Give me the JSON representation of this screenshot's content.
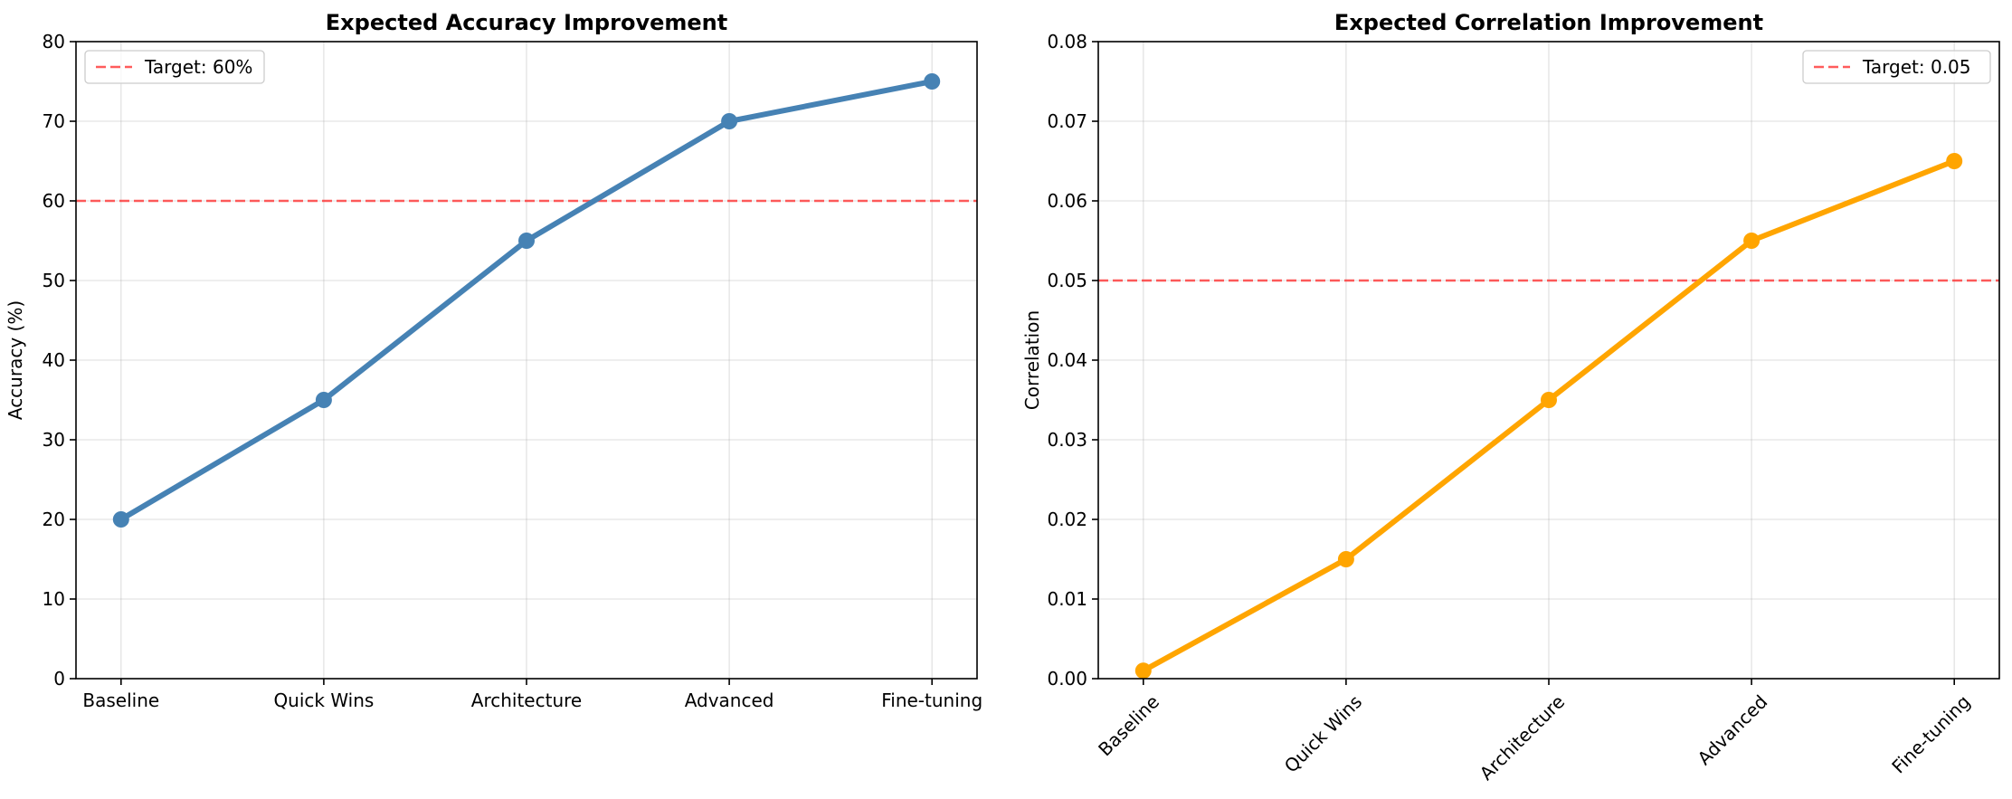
{
  "chart_data": [
    {
      "type": "line",
      "title": "Expected Accuracy Improvement",
      "xlabel": "",
      "ylabel": "Accuracy (%)",
      "categories": [
        "Baseline",
        "Quick Wins",
        "Architecture",
        "Advanced",
        "Fine-tuning"
      ],
      "series": [
        {
          "values": [
            20,
            35,
            55,
            70,
            75
          ],
          "color": "#4682b4"
        }
      ],
      "reference_line": {
        "value": 60,
        "label": "Target: 60%",
        "color": "#ff3333"
      },
      "ylim": [
        0,
        80
      ],
      "yticks": [
        "0",
        "10",
        "20",
        "30",
        "40",
        "50",
        "60",
        "70",
        "80"
      ],
      "x_tick_rotation": 0,
      "grid": true,
      "legend_position": "top-left"
    },
    {
      "type": "line",
      "title": "Expected Correlation Improvement",
      "xlabel": "",
      "ylabel": "Correlation",
      "categories": [
        "Baseline",
        "Quick Wins",
        "Architecture",
        "Advanced",
        "Fine-tuning"
      ],
      "series": [
        {
          "values": [
            0.001,
            0.015,
            0.035,
            0.055,
            0.065
          ],
          "color": "#ffa500"
        }
      ],
      "reference_line": {
        "value": 0.05,
        "label": "Target: 0.05",
        "color": "#ff3333"
      },
      "ylim": [
        0,
        0.08
      ],
      "yticks": [
        "0.00",
        "0.01",
        "0.02",
        "0.03",
        "0.04",
        "0.05",
        "0.06",
        "0.07",
        "0.08"
      ],
      "x_tick_rotation": -45,
      "grid": true,
      "legend_position": "top-right"
    }
  ]
}
